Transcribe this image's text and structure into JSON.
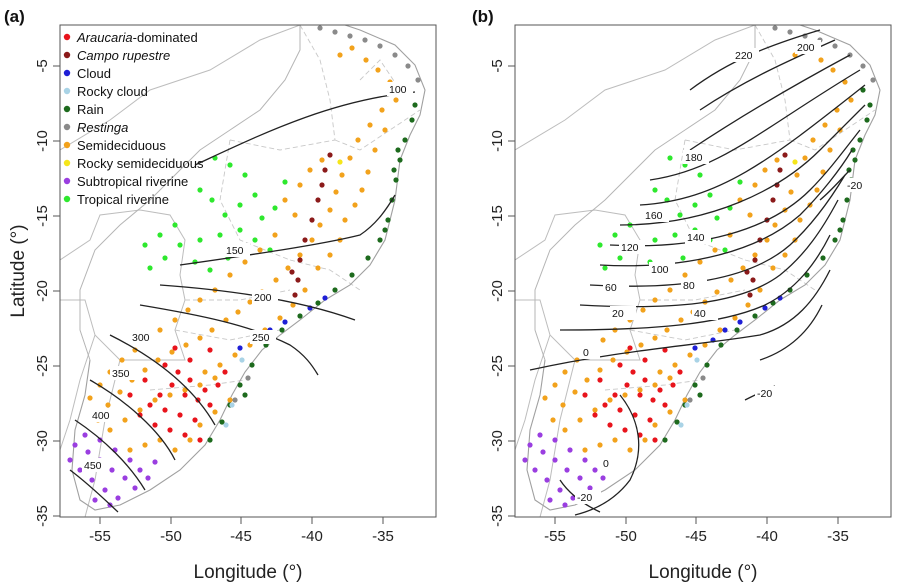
{
  "panels": [
    {
      "tag": "(a)",
      "xlabel": "Longitude (°)",
      "ylabel": "Latitude (°)",
      "xticks": [
        "-55",
        "-50",
        "-45",
        "-40",
        "-35"
      ],
      "yticks": [
        "-5",
        "-10",
        "-15",
        "-20",
        "-25",
        "-30",
        "-35"
      ],
      "contour_labels": [
        {
          "text": "100"
        },
        {
          "text": "150"
        },
        {
          "text": "200"
        },
        {
          "text": "250"
        },
        {
          "text": "300"
        },
        {
          "text": "350"
        },
        {
          "text": "400"
        },
        {
          "text": "450"
        }
      ]
    },
    {
      "tag": "(b)",
      "xlabel": "Longitude (°)",
      "ylabel": "",
      "xticks": [
        "-55",
        "-50",
        "-45",
        "-40",
        "-35"
      ],
      "yticks": [
        "-5",
        "-10",
        "-15",
        "-20",
        "-25",
        "-30",
        "-35"
      ],
      "contour_labels": [
        {
          "text": "220"
        },
        {
          "text": "200"
        },
        {
          "text": "180"
        },
        {
          "text": "160"
        },
        {
          "text": "140"
        },
        {
          "text": "120"
        },
        {
          "text": "100"
        },
        {
          "text": "80"
        },
        {
          "text": "60"
        },
        {
          "text": "40"
        },
        {
          "text": "20"
        },
        {
          "text": "0"
        },
        {
          "text": "-20"
        },
        {
          "text": "-20"
        },
        {
          "text": "0"
        },
        {
          "text": "-20"
        }
      ]
    }
  ],
  "legend": [
    {
      "label": "Araucaria",
      "suffix": "-dominated",
      "italic": true,
      "color": "#e8141c"
    },
    {
      "label": "Campo rupestre",
      "suffix": "",
      "italic": true,
      "color": "#8b1a1a"
    },
    {
      "label": "Cloud",
      "suffix": "",
      "italic": false,
      "color": "#1f1fd6"
    },
    {
      "label": "Rocky cloud",
      "suffix": "",
      "italic": false,
      "color": "#a9d3e6"
    },
    {
      "label": "Rain",
      "suffix": "",
      "italic": false,
      "color": "#1d6a1d"
    },
    {
      "label": "Restinga",
      "suffix": "",
      "italic": true,
      "color": "#8a8a8a"
    },
    {
      "label": "Semideciduous",
      "suffix": "",
      "italic": false,
      "color": "#f2a21c"
    },
    {
      "label": "Rocky semideciduous",
      "suffix": "",
      "italic": false,
      "color": "#f5e61a"
    },
    {
      "label": "Subtropical riverine",
      "suffix": "",
      "italic": false,
      "color": "#9a3ee0"
    },
    {
      "label": "Tropical riverine",
      "suffix": "",
      "italic": false,
      "color": "#2ee82e"
    }
  ]
}
